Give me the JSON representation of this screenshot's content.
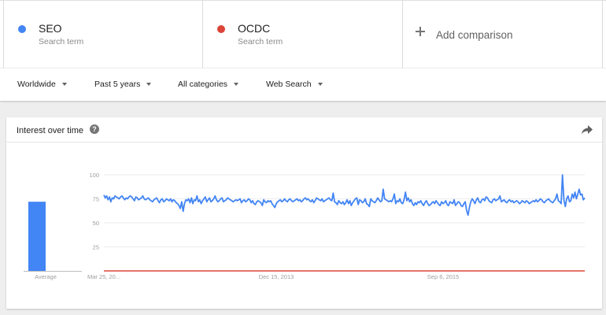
{
  "terms": [
    {
      "name": "SEO",
      "sub": "Search term",
      "color": "#4285f4"
    },
    {
      "name": "OCDC",
      "sub": "Search term",
      "color": "#db4437"
    }
  ],
  "add_comparison": "Add comparison",
  "filters": {
    "region": "Worldwide",
    "time": "Past 5 years",
    "category": "All categories",
    "property": "Web Search"
  },
  "card": {
    "title": "Interest over time",
    "help": "?"
  },
  "chart_data": {
    "type": "line",
    "yticks": [
      25,
      50,
      75,
      100
    ],
    "ylim": [
      0,
      100
    ],
    "xtick_labels": [
      "Mar 25, 20...",
      "Dec 15, 2013",
      "Sep 6, 2015"
    ],
    "averages": {
      "label": "Average",
      "values": [
        72,
        0
      ]
    },
    "series": [
      {
        "name": "SEO",
        "color": "#4285f4",
        "values": [
          79,
          76,
          78,
          74,
          77,
          72,
          76,
          75,
          78,
          77,
          76,
          75,
          77,
          78,
          76,
          74,
          76,
          75,
          77,
          78,
          77,
          75,
          73,
          77,
          76,
          74,
          75,
          76,
          78,
          75,
          74,
          75,
          76,
          74,
          73,
          72,
          74,
          75,
          76,
          73,
          71,
          74,
          75,
          72,
          73,
          75,
          74,
          73,
          75,
          72,
          74,
          73,
          71,
          70,
          68,
          65,
          72,
          62,
          70,
          74,
          73,
          75,
          71,
          76,
          70,
          74,
          73,
          78,
          72,
          74,
          70,
          73,
          75,
          77,
          72,
          74,
          76,
          72,
          73,
          75,
          78,
          74,
          72,
          73,
          75,
          76,
          72,
          73,
          74,
          76,
          75,
          74,
          73,
          72,
          73,
          74,
          73,
          74,
          75,
          71,
          73,
          74,
          72,
          73,
          75,
          74,
          71,
          73,
          70,
          69,
          72,
          73,
          72,
          71,
          68,
          74,
          72,
          71,
          73,
          72,
          73,
          70,
          68,
          66,
          70,
          72,
          73,
          74,
          72,
          73,
          75,
          73,
          72,
          74,
          75,
          73,
          72,
          73,
          74,
          75,
          73,
          74,
          72,
          73,
          75,
          76,
          74,
          75,
          73,
          72,
          74,
          71,
          73,
          76,
          75,
          74,
          73,
          75,
          72,
          73,
          74,
          75,
          76,
          74,
          73,
          81,
          72,
          71,
          69,
          73,
          71,
          70,
          72,
          69,
          71,
          74,
          70,
          73,
          68,
          71,
          73,
          75,
          76,
          69,
          74,
          73,
          71,
          72,
          75,
          70,
          69,
          67,
          75,
          73,
          72,
          71,
          73,
          76,
          74,
          72,
          73,
          85,
          75,
          74,
          73,
          72,
          73,
          72,
          75,
          80,
          70,
          73,
          72,
          75,
          71,
          70,
          74,
          82,
          73,
          76,
          72,
          74,
          70,
          68,
          71,
          69,
          72,
          71,
          73,
          70,
          68,
          71,
          73,
          70,
          68,
          69,
          71,
          72,
          70,
          73,
          71,
          69,
          68,
          72,
          70,
          71,
          73,
          69,
          68,
          72,
          71,
          70,
          74,
          68,
          70,
          72,
          71,
          68,
          67,
          70,
          72,
          63,
          58,
          66,
          72,
          75,
          73,
          70,
          74,
          76,
          72,
          71,
          74,
          75,
          73,
          77,
          76,
          73,
          72,
          71,
          74,
          75,
          73,
          74,
          75,
          78,
          72,
          73,
          74,
          72,
          71,
          73,
          74,
          72,
          73,
          71,
          72,
          73,
          72,
          70,
          71,
          73,
          72,
          71,
          73,
          72,
          70,
          71,
          72,
          73,
          72,
          74,
          72,
          73,
          75,
          74,
          72,
          71,
          73,
          74,
          75,
          73,
          72,
          71,
          73,
          75,
          80,
          73,
          72,
          70,
          100,
          74,
          67,
          75,
          78,
          72,
          73,
          80,
          76,
          82,
          75,
          80,
          85,
          79,
          80,
          74,
          76
        ],
        "line_style": "blue"
      },
      {
        "name": "OCDC",
        "color": "#db4437",
        "values": [
          0,
          0
        ]
      }
    ],
    "grid": true
  }
}
